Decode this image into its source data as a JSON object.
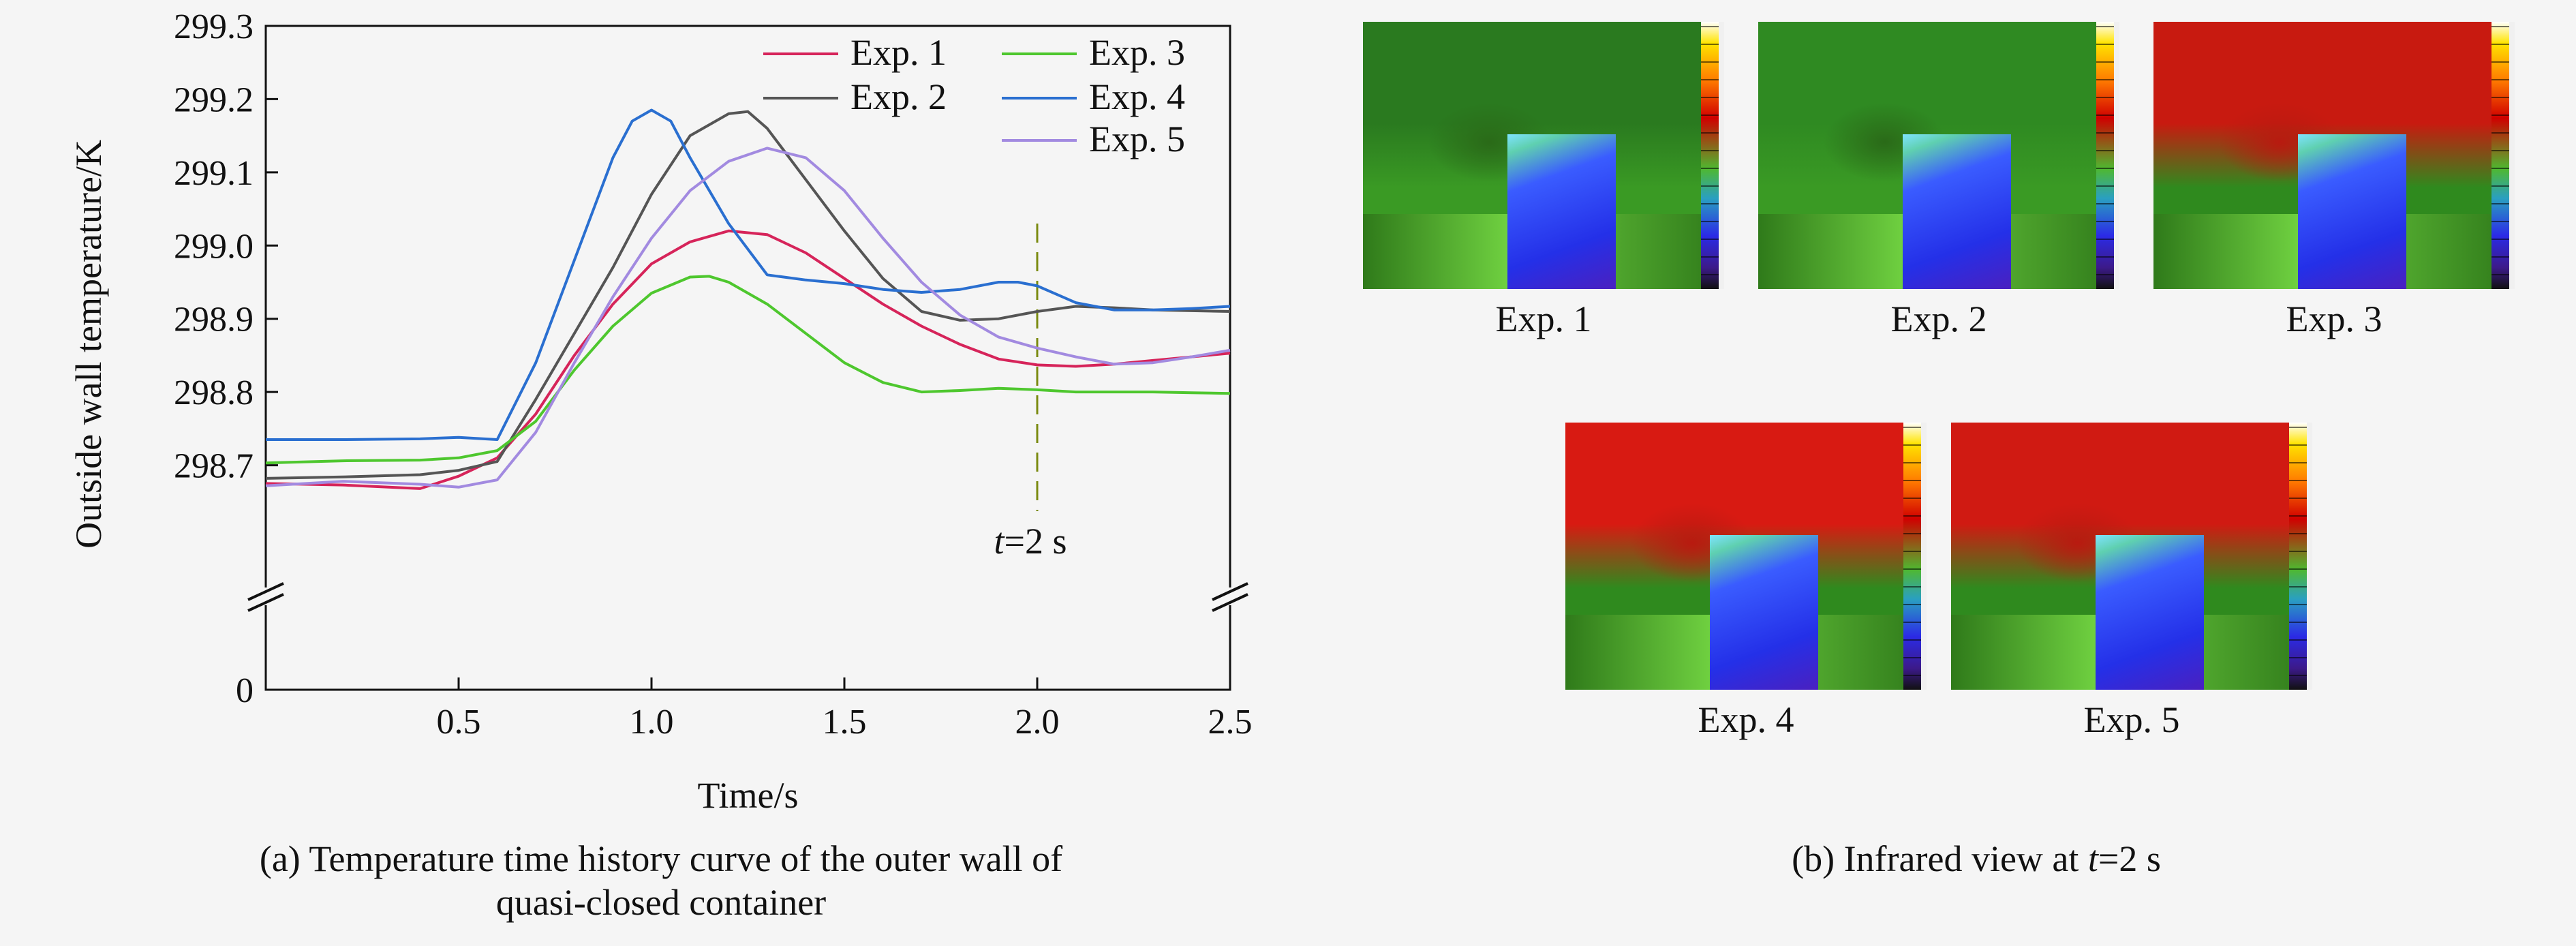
{
  "chart_data": {
    "type": "line",
    "xlabel": "Time/s",
    "ylabel": "Outside wall temperature/K",
    "xlim": [
      0,
      2.5
    ],
    "ylim": [
      298.6,
      299.3
    ],
    "broken_axis": true,
    "x_ticks": [
      "0.5",
      "1.0",
      "1.5",
      "2.0",
      "2.5"
    ],
    "y_ticks": [
      "298.7",
      "298.8",
      "298.9",
      "299.0",
      "299.1",
      "299.2",
      "299.3"
    ],
    "y_zero_label": "0",
    "legend_position": "top-right",
    "marker_line": {
      "x": 2.0,
      "label_italic": "t",
      "label_rest": "=2 s"
    },
    "series": [
      {
        "name": "Exp. 1",
        "color": "#d6245a",
        "points": [
          [
            0,
            298.675
          ],
          [
            0.2,
            298.673
          ],
          [
            0.4,
            298.668
          ],
          [
            0.5,
            298.685
          ],
          [
            0.6,
            298.71
          ],
          [
            0.7,
            298.77
          ],
          [
            0.8,
            298.85
          ],
          [
            0.9,
            298.92
          ],
          [
            1.0,
            298.975
          ],
          [
            1.1,
            299.005
          ],
          [
            1.2,
            299.02
          ],
          [
            1.3,
            299.015
          ],
          [
            1.4,
            298.99
          ],
          [
            1.5,
            298.955
          ],
          [
            1.6,
            298.92
          ],
          [
            1.7,
            298.89
          ],
          [
            1.8,
            298.865
          ],
          [
            1.9,
            298.845
          ],
          [
            2.0,
            298.837
          ],
          [
            2.1,
            298.835
          ],
          [
            2.2,
            298.838
          ],
          [
            2.3,
            298.843
          ],
          [
            2.4,
            298.848
          ],
          [
            2.5,
            298.853
          ]
        ]
      },
      {
        "name": "Exp. 2",
        "color": "#555555",
        "points": [
          [
            0,
            298.682
          ],
          [
            0.2,
            298.684
          ],
          [
            0.4,
            298.687
          ],
          [
            0.5,
            298.693
          ],
          [
            0.6,
            298.705
          ],
          [
            0.7,
            298.79
          ],
          [
            0.8,
            298.88
          ],
          [
            0.9,
            298.97
          ],
          [
            1.0,
            299.07
          ],
          [
            1.1,
            299.15
          ],
          [
            1.2,
            299.18
          ],
          [
            1.25,
            299.183
          ],
          [
            1.3,
            299.16
          ],
          [
            1.4,
            299.09
          ],
          [
            1.5,
            299.02
          ],
          [
            1.6,
            298.955
          ],
          [
            1.7,
            298.91
          ],
          [
            1.8,
            298.898
          ],
          [
            1.9,
            298.9
          ],
          [
            2.0,
            298.91
          ],
          [
            2.1,
            298.917
          ],
          [
            2.2,
            298.915
          ],
          [
            2.3,
            298.912
          ],
          [
            2.4,
            298.911
          ],
          [
            2.5,
            298.91
          ]
        ]
      },
      {
        "name": "Exp. 3",
        "color": "#4ec72e",
        "points": [
          [
            0,
            298.703
          ],
          [
            0.2,
            298.706
          ],
          [
            0.4,
            298.707
          ],
          [
            0.5,
            298.71
          ],
          [
            0.6,
            298.72
          ],
          [
            0.7,
            298.76
          ],
          [
            0.8,
            298.83
          ],
          [
            0.9,
            298.89
          ],
          [
            1.0,
            298.935
          ],
          [
            1.1,
            298.957
          ],
          [
            1.15,
            298.958
          ],
          [
            1.2,
            298.95
          ],
          [
            1.3,
            298.92
          ],
          [
            1.4,
            298.88
          ],
          [
            1.5,
            298.84
          ],
          [
            1.6,
            298.813
          ],
          [
            1.7,
            298.8
          ],
          [
            1.8,
            298.802
          ],
          [
            1.9,
            298.805
          ],
          [
            2.0,
            298.803
          ],
          [
            2.1,
            298.8
          ],
          [
            2.2,
            298.8
          ],
          [
            2.3,
            298.8
          ],
          [
            2.4,
            298.799
          ],
          [
            2.5,
            298.798
          ]
        ]
      },
      {
        "name": "Exp. 4",
        "color": "#2a6fd0",
        "points": [
          [
            0,
            298.735
          ],
          [
            0.2,
            298.735
          ],
          [
            0.4,
            298.736
          ],
          [
            0.5,
            298.738
          ],
          [
            0.6,
            298.735
          ],
          [
            0.7,
            298.84
          ],
          [
            0.8,
            298.98
          ],
          [
            0.9,
            299.12
          ],
          [
            0.95,
            299.17
          ],
          [
            1.0,
            299.185
          ],
          [
            1.05,
            299.17
          ],
          [
            1.1,
            299.12
          ],
          [
            1.2,
            299.03
          ],
          [
            1.3,
            298.96
          ],
          [
            1.4,
            298.953
          ],
          [
            1.5,
            298.948
          ],
          [
            1.6,
            298.94
          ],
          [
            1.7,
            298.936
          ],
          [
            1.8,
            298.94
          ],
          [
            1.9,
            298.95
          ],
          [
            1.95,
            298.95
          ],
          [
            2.0,
            298.945
          ],
          [
            2.1,
            298.922
          ],
          [
            2.2,
            298.912
          ],
          [
            2.3,
            298.912
          ],
          [
            2.4,
            298.914
          ],
          [
            2.5,
            298.917
          ]
        ]
      },
      {
        "name": "Exp. 5",
        "color": "#a28ae0",
        "points": [
          [
            0,
            298.672
          ],
          [
            0.2,
            298.678
          ],
          [
            0.4,
            298.674
          ],
          [
            0.5,
            298.67
          ],
          [
            0.6,
            298.68
          ],
          [
            0.7,
            298.745
          ],
          [
            0.8,
            298.84
          ],
          [
            0.9,
            298.93
          ],
          [
            1.0,
            299.01
          ],
          [
            1.1,
            299.075
          ],
          [
            1.2,
            299.115
          ],
          [
            1.3,
            299.133
          ],
          [
            1.4,
            299.12
          ],
          [
            1.5,
            299.075
          ],
          [
            1.6,
            299.01
          ],
          [
            1.7,
            298.95
          ],
          [
            1.8,
            298.905
          ],
          [
            1.9,
            298.875
          ],
          [
            2.0,
            298.86
          ],
          [
            2.1,
            298.848
          ],
          [
            2.2,
            298.838
          ],
          [
            2.3,
            298.84
          ],
          [
            2.4,
            298.848
          ],
          [
            2.5,
            298.857
          ]
        ]
      }
    ]
  },
  "infrared_images": [
    {
      "label": "Exp. 1",
      "top": "#2a7a1f",
      "hot": false
    },
    {
      "label": "Exp. 2",
      "top": "#2f8a22",
      "hot": false
    },
    {
      "label": "Exp. 3",
      "top": "#c81a10",
      "hot": true
    },
    {
      "label": "Exp. 4",
      "top": "#d81a12",
      "hot": true
    },
    {
      "label": "Exp. 5",
      "top": "#d01a12",
      "hot": true
    }
  ],
  "captions": {
    "a_line1": "(a) Temperature time history curve of the outer wall of",
    "a_line2": "quasi-closed container",
    "b_prefix": "(b) Infrared view at ",
    "b_italic": "t",
    "b_suffix": "=2 s"
  }
}
